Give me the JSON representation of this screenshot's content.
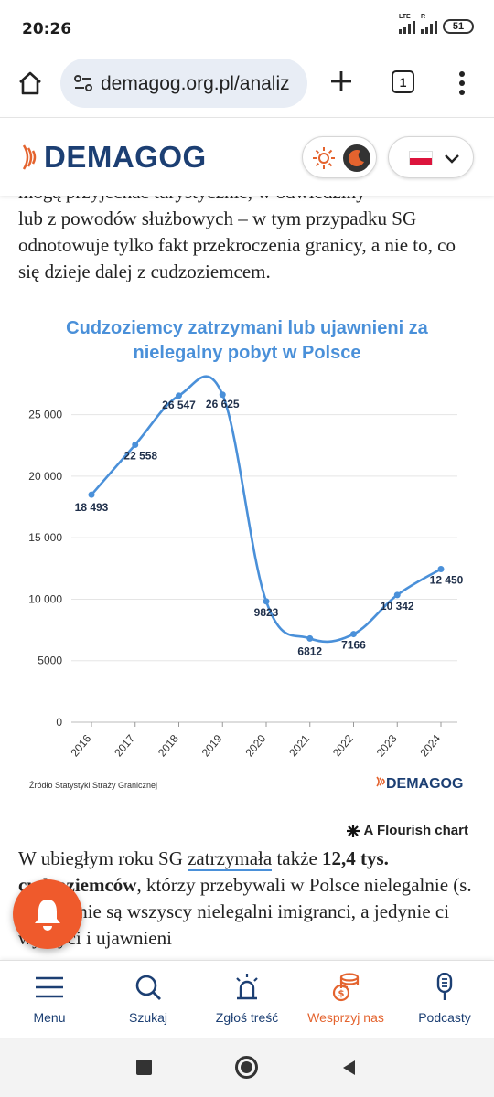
{
  "status": {
    "time": "20:26",
    "net1": "LTE",
    "net2": "R",
    "battery": "51"
  },
  "browser": {
    "url": "demagog.org.pl/analiz",
    "tab_count": "1"
  },
  "site": {
    "logo_text": "DEMAGOG",
    "accent": "#e4632e",
    "brand": "#1c3f73"
  },
  "article_top": {
    "cut_line": "mogą przyjechać turystycznie, w odwiedziny",
    "lines": "lub z powodów służbowych – w tym przypadku SG odnotowuje tylko fakt przekroczenia granicy, a nie to, co się dzieje dalej z cudzoziemcem."
  },
  "chart_data": {
    "type": "line",
    "title": "Cudzoziemcy zatrzymani lub ujawnieni za nielegalny pobyt w Polsce",
    "x": [
      "2016",
      "2017",
      "2018",
      "2019",
      "2020",
      "2021",
      "2022",
      "2023",
      "2024"
    ],
    "series": [
      {
        "values": [
          18493,
          22558,
          26547,
          26625,
          9823,
          6812,
          7166,
          10342,
          12450
        ]
      }
    ],
    "data_labels": [
      "18 493",
      "22 558",
      "26 547",
      "26 625",
      "9823",
      "6812",
      "7166",
      "10 342",
      "12 450"
    ],
    "y_ticks": [
      "0",
      "5000",
      "10 000",
      "15 000",
      "20 000",
      "25 000"
    ],
    "ylim": [
      0,
      27500
    ],
    "grid": true,
    "line_color": "#4a90d9",
    "source": "Źródło Statystyki Straży Granicznej",
    "brand": "DEMAGOG"
  },
  "flourish_label": "A Flourish chart",
  "article_bottom": {
    "p1": "W ubiegłym roku SG ",
    "link": "zatrzymała",
    "p2": " także ",
    "bold": "12,4 tys. cudzoziemców",
    "p3": ", którzy przebywali w Polsce nielegalnie (s. 23). To nie są wszyscy nielegalni imigranci, a jedynie ci wykryci i ujawnieni"
  },
  "nav": {
    "menu": "Menu",
    "search": "Szukaj",
    "report": "Zgłoś treść",
    "support": "Wesprzyj nas",
    "podcasts": "Podcasty"
  }
}
